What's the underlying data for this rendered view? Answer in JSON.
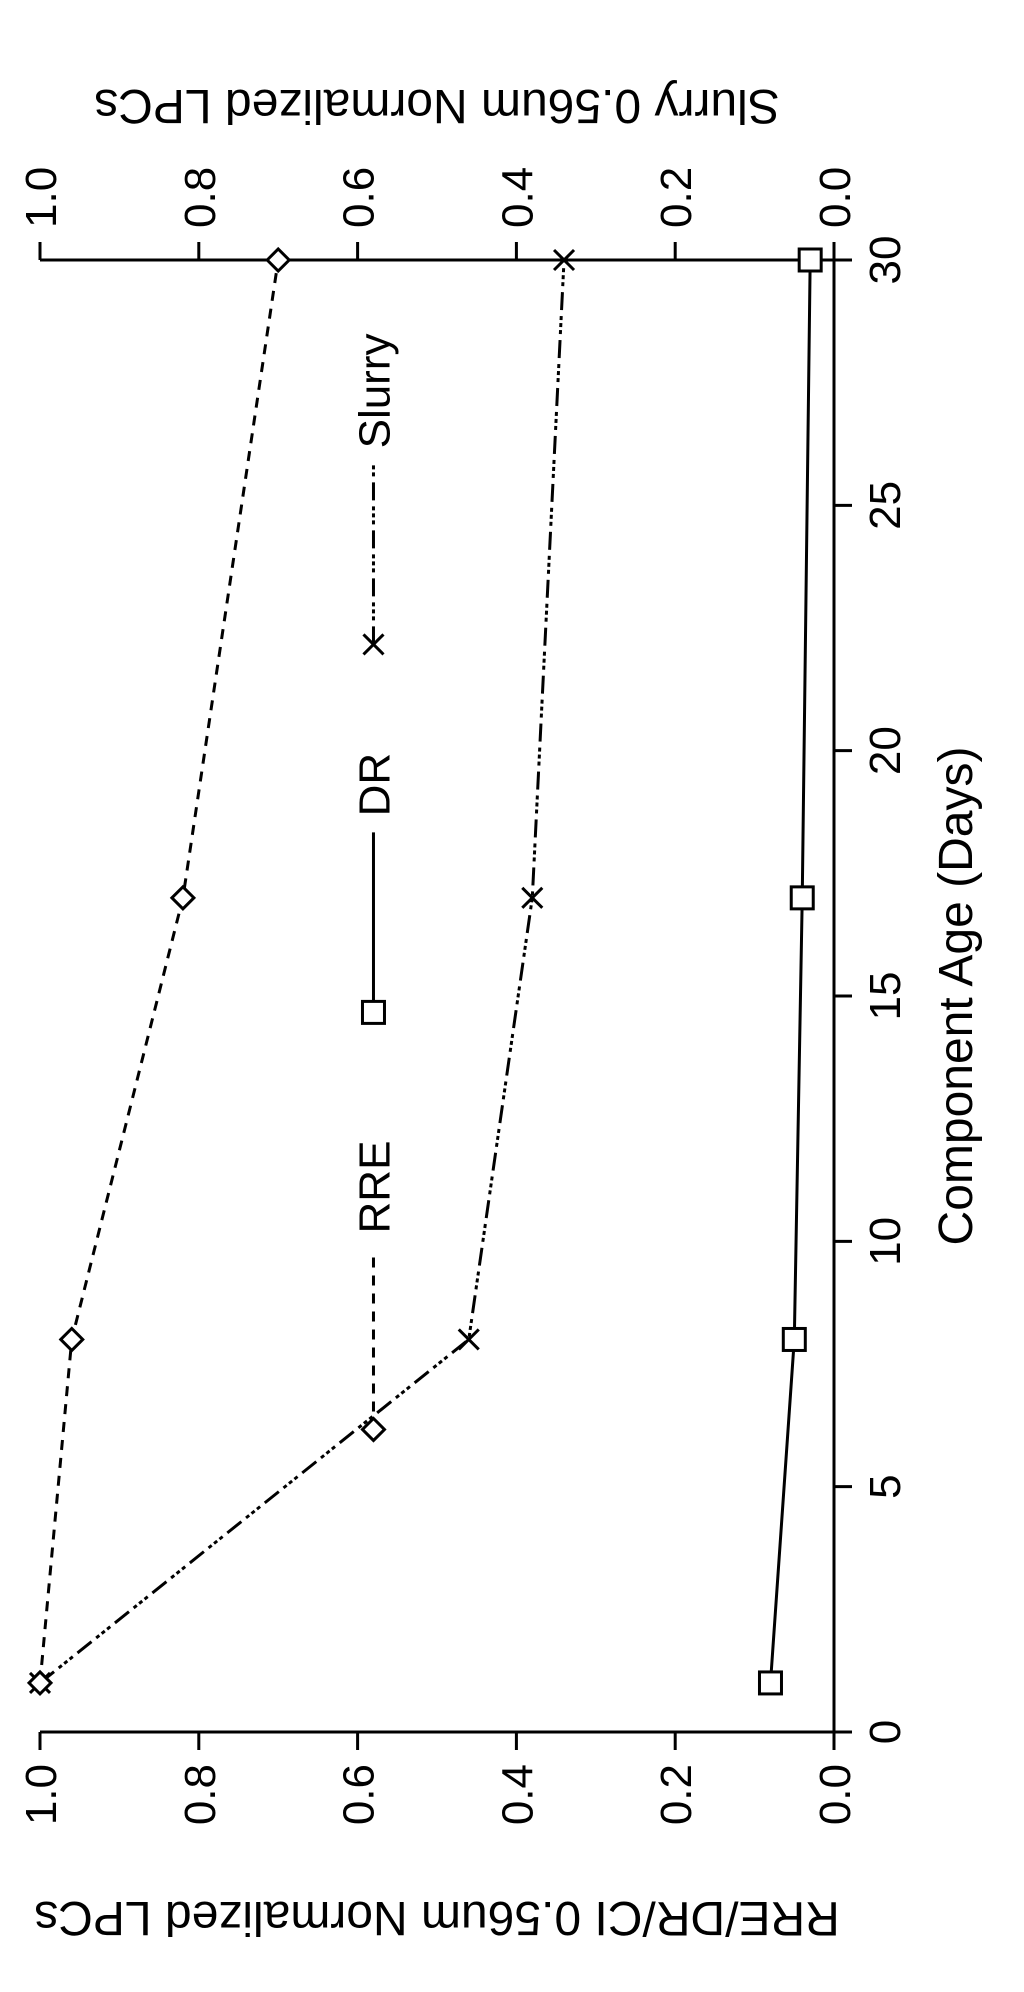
{
  "chart": {
    "type": "line",
    "rotated_ccw": true,
    "background_color": "#ffffff",
    "axis_color": "#000000",
    "axis_line_width": 3,
    "tick_length": 18,
    "tick_label_fontsize": 44,
    "axis_title_fontsize": 48,
    "legend_fontsize": 44,
    "x": {
      "label": "Component Age (Days)",
      "min": 0,
      "max": 30,
      "ticks": [
        0,
        5,
        10,
        15,
        20,
        25,
        30
      ]
    },
    "y_left": {
      "label": "RRE/DR/CI 0.56um Normalized LPCs",
      "min": 0.0,
      "max": 1.0,
      "ticks": [
        0.0,
        0.2,
        0.4,
        0.6,
        0.8,
        1.0
      ]
    },
    "y_right": {
      "label": "Slurry 0.56um Normalized LPCs",
      "min": 0.0,
      "max": 1.0,
      "ticks": [
        0.0,
        0.2,
        0.4,
        0.6,
        0.8,
        1.0
      ]
    },
    "series": {
      "RRE": {
        "label": "RRE",
        "marker": "diamond",
        "line_dash": "10,8",
        "line_width": 3,
        "color": "#000000",
        "marker_size": 22,
        "points": [
          {
            "x": 1,
            "y": 1.0
          },
          {
            "x": 8,
            "y": 0.96
          },
          {
            "x": 17,
            "y": 0.82
          },
          {
            "x": 30,
            "y": 0.7
          }
        ]
      },
      "DR": {
        "label": "DR",
        "marker": "square",
        "line_dash": "none",
        "line_width": 3,
        "color": "#000000",
        "marker_size": 22,
        "points": [
          {
            "x": 1,
            "y": 0.08
          },
          {
            "x": 8,
            "y": 0.05
          },
          {
            "x": 17,
            "y": 0.04
          },
          {
            "x": 30,
            "y": 0.03
          }
        ]
      },
      "Slurry": {
        "label": "Slurry",
        "marker": "x",
        "line_dash": "18,6,4,3,4,3,4,6",
        "line_width": 3,
        "color": "#000000",
        "marker_size": 20,
        "points": [
          {
            "x": 1,
            "y": 1.0
          },
          {
            "x": 8,
            "y": 0.46
          },
          {
            "x": 17,
            "y": 0.38
          },
          {
            "x": 30,
            "y": 0.34
          }
        ]
      }
    },
    "legend": {
      "items": [
        "RRE",
        "DR",
        "Slurry"
      ],
      "y_position_data": 0.58
    }
  }
}
